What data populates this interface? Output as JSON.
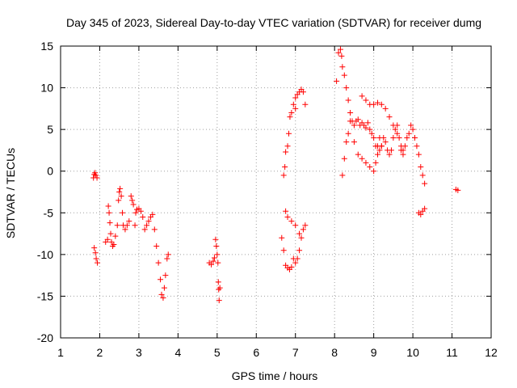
{
  "chart_data": {
    "type": "scatter",
    "title": "Day 345 of 2023, Sidereal Day-to-day VTEC variation (SDTVAR) for receiver dumg",
    "xlabel": "GPS time / hours",
    "ylabel": "SDTVAR / TECUs",
    "xlim": [
      1,
      12
    ],
    "ylim": [
      -20,
      15
    ],
    "xticks": [
      1,
      2,
      3,
      4,
      5,
      6,
      7,
      8,
      9,
      10,
      11,
      12
    ],
    "yticks": [
      -20,
      -15,
      -10,
      -5,
      0,
      5,
      10,
      15
    ],
    "grid": true,
    "marker": "+",
    "color": "#ff0000",
    "series": [
      {
        "name": "SDTVAR",
        "points": [
          [
            1.84,
            -0.8
          ],
          [
            1.86,
            -0.4
          ],
          [
            1.88,
            -0.2
          ],
          [
            1.9,
            -0.5
          ],
          [
            1.93,
            -0.8
          ],
          [
            1.86,
            -9.2
          ],
          [
            1.89,
            -9.8
          ],
          [
            1.91,
            -10.5
          ],
          [
            1.94,
            -11.0
          ],
          [
            2.15,
            -8.5
          ],
          [
            2.2,
            -8.2
          ],
          [
            2.22,
            -4.2
          ],
          [
            2.24,
            -5.0
          ],
          [
            2.26,
            -6.2
          ],
          [
            2.28,
            -7.5
          ],
          [
            2.3,
            -8.5
          ],
          [
            2.33,
            -9.0
          ],
          [
            2.36,
            -8.8
          ],
          [
            2.4,
            -7.8
          ],
          [
            2.45,
            -6.5
          ],
          [
            2.48,
            -3.5
          ],
          [
            2.5,
            -2.5
          ],
          [
            2.52,
            -2.1
          ],
          [
            2.55,
            -3.0
          ],
          [
            2.58,
            -5.0
          ],
          [
            2.6,
            -6.5
          ],
          [
            2.65,
            -7.0
          ],
          [
            2.7,
            -6.5
          ],
          [
            2.75,
            -6.0
          ],
          [
            2.8,
            -3.0
          ],
          [
            2.83,
            -3.5
          ],
          [
            2.86,
            -4.0
          ],
          [
            2.9,
            -6.5
          ],
          [
            2.92,
            -5.0
          ],
          [
            2.95,
            -4.6
          ],
          [
            3.0,
            -4.5
          ],
          [
            3.05,
            -4.8
          ],
          [
            3.1,
            -5.5
          ],
          [
            3.15,
            -7.0
          ],
          [
            3.2,
            -6.5
          ],
          [
            3.25,
            -6.0
          ],
          [
            3.3,
            -5.5
          ],
          [
            3.35,
            -5.2
          ],
          [
            3.4,
            -7.0
          ],
          [
            3.45,
            -9.0
          ],
          [
            3.5,
            -11.0
          ],
          [
            3.55,
            -13.0
          ],
          [
            3.58,
            -14.8
          ],
          [
            3.62,
            -15.2
          ],
          [
            3.65,
            -14.0
          ],
          [
            3.68,
            -12.5
          ],
          [
            3.72,
            -10.5
          ],
          [
            3.75,
            -10.0
          ],
          [
            4.8,
            -11.0
          ],
          [
            4.85,
            -11.2
          ],
          [
            4.9,
            -10.8
          ],
          [
            4.93,
            -10.4
          ],
          [
            4.96,
            -8.2
          ],
          [
            4.98,
            -9.0
          ],
          [
            5.0,
            -10.0
          ],
          [
            5.02,
            -11.0
          ],
          [
            5.03,
            -13.3
          ],
          [
            5.04,
            -14.2
          ],
          [
            5.05,
            -15.5
          ],
          [
            5.07,
            -14.0
          ],
          [
            6.65,
            -8.0
          ],
          [
            6.7,
            -9.5
          ],
          [
            6.75,
            -11.3
          ],
          [
            6.8,
            -11.6
          ],
          [
            6.85,
            -11.8
          ],
          [
            6.9,
            -11.5
          ],
          [
            6.95,
            -10.5
          ],
          [
            7.0,
            -11.0
          ],
          [
            7.05,
            -10.5
          ],
          [
            7.1,
            -9.5
          ],
          [
            7.15,
            -8.0
          ],
          [
            7.2,
            -7.0
          ],
          [
            7.25,
            -6.5
          ],
          [
            6.75,
            -4.8
          ],
          [
            6.8,
            -5.5
          ],
          [
            6.9,
            -6.0
          ],
          [
            7.0,
            -6.5
          ],
          [
            7.1,
            -7.5
          ],
          [
            6.7,
            -0.5
          ],
          [
            6.73,
            0.5
          ],
          [
            6.75,
            2.3
          ],
          [
            6.8,
            3.0
          ],
          [
            6.83,
            4.5
          ],
          [
            6.86,
            6.5
          ],
          [
            6.9,
            7.0
          ],
          [
            6.95,
            8.0
          ],
          [
            7.0,
            8.8
          ],
          [
            7.05,
            9.2
          ],
          [
            7.1,
            9.5
          ],
          [
            7.15,
            9.8
          ],
          [
            7.2,
            9.5
          ],
          [
            7.25,
            8.0
          ],
          [
            7.0,
            7.5
          ],
          [
            8.05,
            10.8
          ],
          [
            8.1,
            14.2
          ],
          [
            8.15,
            14.6
          ],
          [
            8.18,
            13.8
          ],
          [
            8.2,
            12.5
          ],
          [
            8.25,
            11.5
          ],
          [
            8.3,
            10.0
          ],
          [
            8.35,
            8.5
          ],
          [
            8.4,
            7.0
          ],
          [
            8.45,
            6.0
          ],
          [
            8.5,
            5.5
          ],
          [
            8.55,
            6.0
          ],
          [
            8.6,
            6.2
          ],
          [
            8.65,
            5.5
          ],
          [
            8.7,
            5.8
          ],
          [
            8.75,
            5.5
          ],
          [
            8.8,
            5.2
          ],
          [
            8.85,
            5.8
          ],
          [
            8.9,
            5.0
          ],
          [
            8.95,
            4.5
          ],
          [
            9.0,
            4.0
          ],
          [
            9.05,
            3.0
          ],
          [
            9.1,
            2.0
          ],
          [
            9.15,
            2.5
          ],
          [
            9.2,
            3.0
          ],
          [
            9.25,
            4.0
          ],
          [
            9.3,
            3.5
          ],
          [
            9.35,
            2.5
          ],
          [
            9.4,
            2.0
          ],
          [
            9.45,
            2.5
          ],
          [
            9.5,
            4.0
          ],
          [
            9.55,
            5.0
          ],
          [
            9.6,
            5.5
          ],
          [
            9.65,
            4.0
          ],
          [
            9.7,
            2.5
          ],
          [
            9.75,
            2.0
          ],
          [
            9.8,
            3.0
          ],
          [
            9.85,
            4.0
          ],
          [
            9.9,
            4.5
          ],
          [
            9.95,
            5.5
          ],
          [
            10.0,
            5.0
          ],
          [
            10.05,
            4.0
          ],
          [
            10.1,
            3.0
          ],
          [
            10.15,
            2.0
          ],
          [
            10.2,
            0.5
          ],
          [
            10.25,
            -0.5
          ],
          [
            10.3,
            -1.5
          ],
          [
            8.5,
            3.5
          ],
          [
            8.6,
            2.0
          ],
          [
            8.7,
            1.5
          ],
          [
            8.8,
            1.0
          ],
          [
            8.9,
            0.5
          ],
          [
            9.0,
            0.0
          ],
          [
            9.05,
            1.0
          ],
          [
            9.1,
            3.0
          ],
          [
            9.15,
            4.0
          ],
          [
            9.2,
            3.0
          ],
          [
            8.2,
            -0.5
          ],
          [
            8.25,
            1.5
          ],
          [
            8.3,
            3.5
          ],
          [
            8.35,
            4.5
          ],
          [
            8.4,
            6.0
          ],
          [
            8.7,
            9.0
          ],
          [
            8.8,
            8.5
          ],
          [
            8.9,
            8.0
          ],
          [
            9.0,
            8.0
          ],
          [
            9.1,
            8.2
          ],
          [
            9.2,
            8.0
          ],
          [
            9.3,
            7.5
          ],
          [
            9.4,
            6.5
          ],
          [
            9.5,
            5.5
          ],
          [
            9.6,
            4.5
          ],
          [
            9.7,
            3.0
          ],
          [
            9.75,
            2.5
          ],
          [
            10.15,
            -5.0
          ],
          [
            10.2,
            -5.2
          ],
          [
            10.25,
            -4.8
          ],
          [
            10.3,
            -4.5
          ],
          [
            11.1,
            -2.2
          ],
          [
            11.15,
            -2.3
          ]
        ]
      }
    ]
  }
}
